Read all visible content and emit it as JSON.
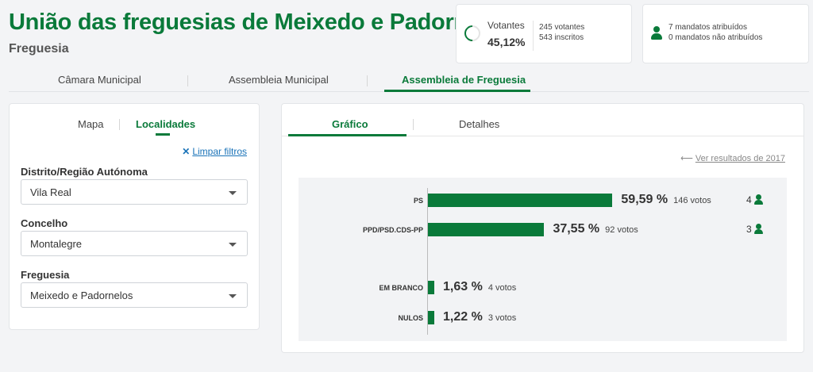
{
  "header": {
    "title": "União das freguesias de Meixedo e Padornelos",
    "subtitle": "Freguesia"
  },
  "stats": {
    "voters_label": "Votantes",
    "voters_percent": "45,12%",
    "voters_count": "245 votantes",
    "registered": "543 inscritos",
    "mandates_assigned": "7 mandatos atribuídos",
    "mandates_unassigned": "0 mandatos não atribuídos"
  },
  "top_tabs": [
    "Câmara Municipal",
    "Assembleia Municipal",
    "Assembleia de Freguesia"
  ],
  "left_panel": {
    "tabs": [
      "Mapa",
      "Localidades"
    ],
    "clear_filters": "Limpar filtros",
    "filters": [
      {
        "label": "Distrito/Região Autónoma",
        "value": "Vila Real"
      },
      {
        "label": "Concelho",
        "value": "Montalegre"
      },
      {
        "label": "Freguesia",
        "value": "Meixedo e Padornelos"
      }
    ]
  },
  "right_panel": {
    "tabs": [
      "Gráfico",
      "Detalhes"
    ],
    "previous_results": "Ver resultados de 2017"
  },
  "chart_data": {
    "type": "bar",
    "orientation": "horizontal",
    "categories": [
      "PS",
      "PPD/PSD.CDS-PP",
      "EM BRANCO",
      "NULOS"
    ],
    "values": [
      59.59,
      37.55,
      1.63,
      1.22
    ],
    "percent_labels": [
      "59,59 %",
      "37,55 %",
      "1,63 %",
      "1,22 %"
    ],
    "votes_labels": [
      "146 votos",
      "92 votos",
      "4 votos",
      "3 votos"
    ],
    "seats": [
      "4",
      "3",
      "",
      ""
    ],
    "xlim": [
      0,
      100
    ],
    "bar_color": "#0a7a3a"
  },
  "colors": {
    "accent": "#0a7a3a",
    "link": "#1a73b8"
  }
}
